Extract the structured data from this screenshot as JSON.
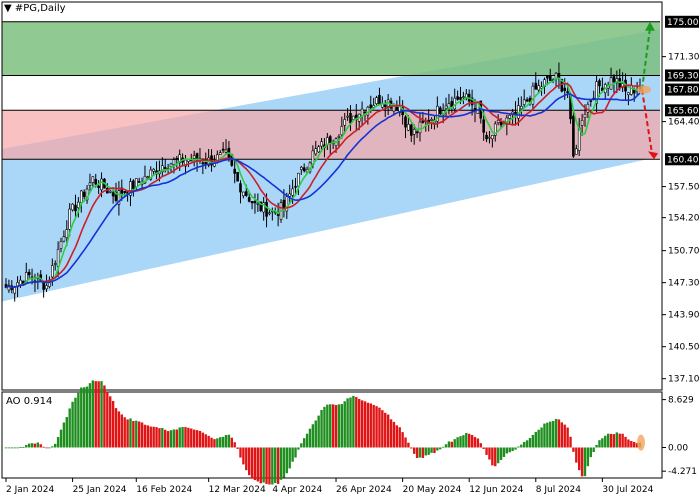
{
  "header": {
    "menu_arrow": "▼",
    "symbol": "#PG,Daily"
  },
  "indicator": {
    "label": "AO 0.914"
  },
  "chart_data": [
    {
      "type": "candlestick",
      "title": "#PG,Daily",
      "x_tick_labels": [
        "2 Jan 2024",
        "25 Jan 2024",
        "16 Feb 2024",
        "12 Mar 2024",
        "4 Apr 2024",
        "26 Apr 2024",
        "20 May 2024",
        "12 Jun 2024",
        "8 Jul 2024",
        "30 Jul 2024"
      ],
      "y_tick_labels": [
        "175.00",
        "171.30",
        "169.30",
        "167.80",
        "165.60",
        "164.40",
        "160.40",
        "157.50",
        "154.20",
        "150.70",
        "147.30",
        "143.90",
        "140.50",
        "137.10"
      ],
      "y_ticks_plain": [
        171.3,
        164.4,
        157.5,
        154.2,
        150.7,
        147.3,
        143.9,
        140.5,
        137.1
      ],
      "y_ticks_boxed": [
        {
          "value": 175.0,
          "label": "175.00",
          "fill": "#000000",
          "text_color": "#ffffff"
        },
        {
          "value": 169.3,
          "label": "169.30",
          "fill": "#000000",
          "text_color": "#ffffff"
        },
        {
          "value": 167.8,
          "label": "167.80",
          "fill": "#000000",
          "text_color": "#ffffff"
        },
        {
          "value": 165.6,
          "label": "165.60",
          "fill": "#000000",
          "text_color": "#ffffff"
        },
        {
          "value": 160.4,
          "label": "160.40",
          "fill": "#000000",
          "text_color": "#ffffff"
        }
      ],
      "ylim": [
        135.9,
        177.1
      ],
      "levels": {
        "green_zone": [
          169.3,
          175.0
        ],
        "red_zone": [
          160.4,
          165.6
        ],
        "current": 167.8
      },
      "channel": {
        "upper_start": 161.5,
        "upper_end": 174.2,
        "lower_start": 145.3,
        "lower_end": 160.7
      },
      "forecast": {
        "up_target": 175.0,
        "down_target": 160.4
      },
      "candles": [],
      "series": [
        {
          "color": "#2ecc40"
        },
        {
          "color": "#cc1f2a"
        },
        {
          "color": "#1432d6"
        }
      ],
      "colors": {
        "green_zone": "#7dbf7f",
        "red_zone": "#f7a7a7",
        "channel": "#9bcff7",
        "candle": "#000000",
        "ao_up": "#1e8f1e",
        "ao_down": "#e01414",
        "forecast_up": "#1e9b1e",
        "forecast_down": "#e01414"
      }
    },
    {
      "type": "bar",
      "title": "AO 0.914",
      "y_tick_labels": [
        "8.629",
        "0.00",
        "-4.271"
      ],
      "ylim": [
        -5.5,
        10.0
      ],
      "values": []
    }
  ]
}
